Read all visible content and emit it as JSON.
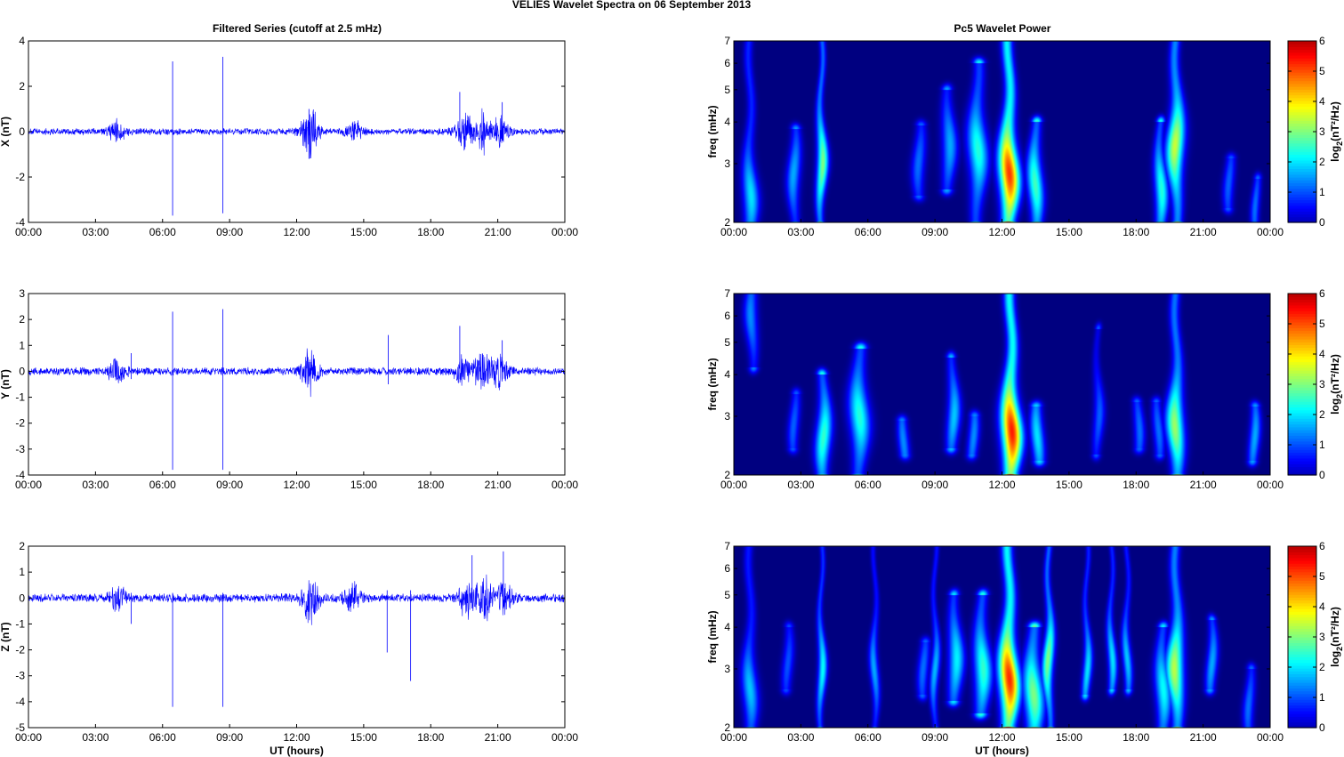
{
  "figure": {
    "title": "VELIES Wavelet Spectra on 06 September 2013",
    "left_title": "Filtered Series (cutoff at 2.5 mHz)",
    "right_title": "Pc5 Wavelet Power"
  },
  "colorbar": {
    "label": "log2(nT²/Hz)",
    "label_main": "log",
    "label_sub": "2",
    "label_rest": "(nT²/Hz)",
    "range": [
      0,
      6
    ],
    "ticks": [
      "0",
      "1",
      "2",
      "3",
      "4",
      "5",
      "6"
    ],
    "colormap": "jet"
  },
  "chart_data": [
    {
      "type": "line",
      "panel": "time-series",
      "component": "X",
      "ylabel": "X (nT)",
      "xlabel": "",
      "x_range": [
        "00:00",
        "24:00"
      ],
      "x_ticks": [
        "00:00",
        "03:00",
        "06:00",
        "09:00",
        "12:00",
        "15:00",
        "18:00",
        "21:00",
        "00:00"
      ],
      "ylim": [
        -4,
        4
      ],
      "y_ticks": [
        "-4",
        "-2",
        "0",
        "2",
        "4"
      ],
      "color": "#0000ff",
      "grid": false,
      "noise_amplitude": 0.12,
      "activity": [
        {
          "t": 3.95,
          "amp": 0.4
        },
        {
          "t": 12.6,
          "amp": 0.9
        },
        {
          "t": 14.6,
          "amp": 0.3
        },
        {
          "t": 19.5,
          "amp": 0.6
        },
        {
          "t": 20.3,
          "amp": 0.7
        },
        {
          "t": 21.1,
          "amp": 0.5
        }
      ],
      "spikes": [
        {
          "t": 6.45,
          "max": 3.1,
          "min": -3.7
        },
        {
          "t": 8.7,
          "max": 3.3,
          "min": -3.6
        },
        {
          "t": 12.55,
          "max": 1.0,
          "min": -1.2
        },
        {
          "t": 19.3,
          "max": 1.75,
          "min": -0.3
        },
        {
          "t": 21.2,
          "max": 1.3,
          "min": -0.4
        }
      ]
    },
    {
      "type": "line",
      "panel": "time-series",
      "component": "Y",
      "ylabel": "Y (nT)",
      "xlabel": "",
      "x_range": [
        "00:00",
        "24:00"
      ],
      "x_ticks": [
        "00:00",
        "03:00",
        "06:00",
        "09:00",
        "12:00",
        "15:00",
        "18:00",
        "21:00",
        "00:00"
      ],
      "ylim": [
        -4,
        3
      ],
      "y_ticks": [
        "-4",
        "-3",
        "-2",
        "-1",
        "0",
        "1",
        "2",
        "3"
      ],
      "color": "#0000ff",
      "grid": false,
      "noise_amplitude": 0.12,
      "activity": [
        {
          "t": 3.95,
          "amp": 0.4
        },
        {
          "t": 12.6,
          "amp": 0.7
        },
        {
          "t": 19.5,
          "amp": 0.5
        },
        {
          "t": 20.3,
          "amp": 0.7
        },
        {
          "t": 21.1,
          "amp": 0.5
        }
      ],
      "spikes": [
        {
          "t": 6.45,
          "max": 2.3,
          "min": -3.8
        },
        {
          "t": 8.7,
          "max": 2.4,
          "min": -3.8
        },
        {
          "t": 16.1,
          "max": 1.4,
          "min": -0.5
        },
        {
          "t": 19.3,
          "max": 1.75,
          "min": -0.3
        },
        {
          "t": 21.2,
          "max": 1.2,
          "min": -0.3
        },
        {
          "t": 4.6,
          "max": 0.7,
          "min": -0.3
        }
      ]
    },
    {
      "type": "line",
      "panel": "time-series",
      "component": "Z",
      "ylabel": "Z (nT)",
      "xlabel": "UT (hours)",
      "x_range": [
        "00:00",
        "24:00"
      ],
      "x_ticks": [
        "00:00",
        "03:00",
        "06:00",
        "09:00",
        "12:00",
        "15:00",
        "18:00",
        "21:00",
        "00:00"
      ],
      "ylim": [
        -5,
        2
      ],
      "y_ticks": [
        "-5",
        "-4",
        "-3",
        "-2",
        "-1",
        "0",
        "1",
        "2"
      ],
      "color": "#0000ff",
      "grid": false,
      "noise_amplitude": 0.13,
      "activity": [
        {
          "t": 4.0,
          "amp": 0.35
        },
        {
          "t": 12.6,
          "amp": 0.8
        },
        {
          "t": 14.5,
          "amp": 0.4
        },
        {
          "t": 19.6,
          "amp": 0.6
        },
        {
          "t": 20.4,
          "amp": 0.7
        },
        {
          "t": 21.3,
          "amp": 0.5
        }
      ],
      "spikes": [
        {
          "t": 6.45,
          "max": 0.2,
          "min": -4.2
        },
        {
          "t": 8.7,
          "max": 0.2,
          "min": -4.2
        },
        {
          "t": 16.05,
          "max": 0.3,
          "min": -2.1
        },
        {
          "t": 17.1,
          "max": 0.3,
          "min": -3.2
        },
        {
          "t": 19.85,
          "max": 1.65,
          "min": -0.4
        },
        {
          "t": 21.25,
          "max": 1.8,
          "min": -0.4
        },
        {
          "t": 4.6,
          "max": 0.2,
          "min": -1.0
        }
      ]
    },
    {
      "type": "heatmap",
      "panel": "wavelet-power",
      "component": "X",
      "ylabel": "freq (mHz)",
      "xlabel": "",
      "x_range": [
        "00:00",
        "24:00"
      ],
      "x_ticks": [
        "00:00",
        "03:00",
        "06:00",
        "09:00",
        "12:00",
        "15:00",
        "18:00",
        "21:00",
        "00:00"
      ],
      "y_scale": "log",
      "ylim": [
        2,
        7
      ],
      "y_ticks": [
        "2",
        "3",
        "4",
        "5",
        "6",
        "7"
      ],
      "value_range": [
        0,
        6
      ],
      "features": [
        {
          "t": 0.7,
          "f_lo": 2.0,
          "f_hi": 7.0,
          "peak": 2.4,
          "value": 2.4,
          "width": 0.35
        },
        {
          "t": 2.7,
          "f_lo": 2.0,
          "f_hi": 3.8,
          "peak": 2.8,
          "value": 2.0,
          "width": 0.3
        },
        {
          "t": 3.9,
          "f_lo": 2.0,
          "f_hi": 7.0,
          "peak": 3.0,
          "value": 3.4,
          "width": 0.25
        },
        {
          "t": 8.3,
          "f_lo": 2.4,
          "f_hi": 3.9,
          "peak": 3.0,
          "value": 1.6,
          "width": 0.3
        },
        {
          "t": 9.6,
          "f_lo": 2.5,
          "f_hi": 5.0,
          "peak": 3.4,
          "value": 2.0,
          "width": 0.35
        },
        {
          "t": 10.9,
          "f_lo": 2.0,
          "f_hi": 6.0,
          "peak": 3.3,
          "value": 2.8,
          "width": 0.45
        },
        {
          "t": 12.3,
          "f_lo": 2.0,
          "f_hi": 7.0,
          "peak": 2.8,
          "value": 5.6,
          "width": 0.45
        },
        {
          "t": 13.5,
          "f_lo": 2.0,
          "f_hi": 4.0,
          "peak": 2.6,
          "value": 3.0,
          "width": 0.35
        },
        {
          "t": 19.1,
          "f_lo": 2.0,
          "f_hi": 4.0,
          "peak": 2.5,
          "value": 2.8,
          "width": 0.3
        },
        {
          "t": 19.8,
          "f_lo": 2.0,
          "f_hi": 7.0,
          "peak": 3.4,
          "value": 3.9,
          "width": 0.4
        },
        {
          "t": 22.2,
          "f_lo": 2.2,
          "f_hi": 3.1,
          "peak": 2.6,
          "value": 1.5,
          "width": 0.25
        },
        {
          "t": 23.4,
          "f_lo": 2.0,
          "f_hi": 2.7,
          "peak": 2.2,
          "value": 1.6,
          "width": 0.2
        }
      ]
    },
    {
      "type": "heatmap",
      "panel": "wavelet-power",
      "component": "Y",
      "ylabel": "freq (mHz)",
      "xlabel": "",
      "x_range": [
        "00:00",
        "24:00"
      ],
      "x_ticks": [
        "00:00",
        "03:00",
        "06:00",
        "09:00",
        "12:00",
        "15:00",
        "18:00",
        "21:00",
        "00:00"
      ],
      "y_scale": "log",
      "ylim": [
        2,
        7
      ],
      "y_ticks": [
        "2",
        "3",
        "4",
        "5",
        "6",
        "7"
      ],
      "value_range": [
        0,
        6
      ],
      "features": [
        {
          "t": 0.8,
          "f_lo": 4.2,
          "f_hi": 7.0,
          "peak": 6.0,
          "value": 1.8,
          "width": 0.3
        },
        {
          "t": 2.7,
          "f_lo": 2.4,
          "f_hi": 3.5,
          "peak": 2.8,
          "value": 1.5,
          "width": 0.25
        },
        {
          "t": 4.0,
          "f_lo": 2.0,
          "f_hi": 4.0,
          "peak": 2.6,
          "value": 2.9,
          "width": 0.35
        },
        {
          "t": 5.6,
          "f_lo": 2.0,
          "f_hi": 4.8,
          "peak": 3.0,
          "value": 2.8,
          "width": 0.45
        },
        {
          "t": 7.6,
          "f_lo": 2.3,
          "f_hi": 2.9,
          "peak": 2.5,
          "value": 1.8,
          "width": 0.25
        },
        {
          "t": 9.8,
          "f_lo": 2.4,
          "f_hi": 4.5,
          "peak": 3.0,
          "value": 2.2,
          "width": 0.3
        },
        {
          "t": 10.7,
          "f_lo": 2.3,
          "f_hi": 3.0,
          "peak": 2.6,
          "value": 1.8,
          "width": 0.25
        },
        {
          "t": 12.4,
          "f_lo": 2.0,
          "f_hi": 7.0,
          "peak": 2.7,
          "value": 5.8,
          "width": 0.45
        },
        {
          "t": 13.6,
          "f_lo": 2.2,
          "f_hi": 3.2,
          "peak": 2.6,
          "value": 2.4,
          "width": 0.3
        },
        {
          "t": 16.3,
          "f_lo": 2.3,
          "f_hi": 5.5,
          "peak": 3.0,
          "value": 1.5,
          "width": 0.25
        },
        {
          "t": 18.1,
          "f_lo": 2.4,
          "f_hi": 3.3,
          "peak": 2.7,
          "value": 1.6,
          "width": 0.25
        },
        {
          "t": 19.0,
          "f_lo": 2.3,
          "f_hi": 3.3,
          "peak": 2.7,
          "value": 1.6,
          "width": 0.25
        },
        {
          "t": 19.8,
          "f_lo": 2.0,
          "f_hi": 7.0,
          "peak": 2.8,
          "value": 3.6,
          "width": 0.4
        },
        {
          "t": 23.3,
          "f_lo": 2.2,
          "f_hi": 3.2,
          "peak": 2.6,
          "value": 2.0,
          "width": 0.25
        }
      ]
    },
    {
      "type": "heatmap",
      "panel": "wavelet-power",
      "component": "Z",
      "ylabel": "freq (mHz)",
      "xlabel": "UT (hours)",
      "x_range": [
        "00:00",
        "24:00"
      ],
      "x_ticks": [
        "00:00",
        "03:00",
        "06:00",
        "09:00",
        "12:00",
        "15:00",
        "18:00",
        "21:00",
        "00:00"
      ],
      "y_scale": "log",
      "ylim": [
        2,
        7
      ],
      "y_ticks": [
        "2",
        "3",
        "4",
        "5",
        "6",
        "7"
      ],
      "value_range": [
        0,
        6
      ],
      "features": [
        {
          "t": 0.7,
          "f_lo": 2.0,
          "f_hi": 7.0,
          "peak": 2.6,
          "value": 2.2,
          "width": 0.35
        },
        {
          "t": 2.4,
          "f_lo": 2.6,
          "f_hi": 4.0,
          "peak": 3.1,
          "value": 1.4,
          "width": 0.25
        },
        {
          "t": 3.9,
          "f_lo": 2.0,
          "f_hi": 7.0,
          "peak": 3.0,
          "value": 2.6,
          "width": 0.2
        },
        {
          "t": 6.3,
          "f_lo": 2.0,
          "f_hi": 7.0,
          "peak": 3.0,
          "value": 2.0,
          "width": 0.2
        },
        {
          "t": 9.0,
          "f_lo": 2.0,
          "f_hi": 7.0,
          "peak": 3.0,
          "value": 2.1,
          "width": 0.2
        },
        {
          "t": 8.5,
          "f_lo": 2.5,
          "f_hi": 3.6,
          "peak": 3.0,
          "value": 1.6,
          "width": 0.25
        },
        {
          "t": 9.9,
          "f_lo": 2.4,
          "f_hi": 5.0,
          "peak": 3.2,
          "value": 2.5,
          "width": 0.35
        },
        {
          "t": 11.1,
          "f_lo": 2.2,
          "f_hi": 5.0,
          "peak": 3.0,
          "value": 2.9,
          "width": 0.4
        },
        {
          "t": 12.3,
          "f_lo": 2.0,
          "f_hi": 7.0,
          "peak": 2.8,
          "value": 5.7,
          "width": 0.45
        },
        {
          "t": 13.4,
          "f_lo": 2.0,
          "f_hi": 4.0,
          "peak": 2.5,
          "value": 3.4,
          "width": 0.45
        },
        {
          "t": 14.1,
          "f_lo": 2.0,
          "f_hi": 7.0,
          "peak": 3.2,
          "value": 3.4,
          "width": 0.25
        },
        {
          "t": 15.8,
          "f_lo": 2.5,
          "f_hi": 7.0,
          "peak": 3.0,
          "value": 2.4,
          "width": 0.2
        },
        {
          "t": 16.9,
          "f_lo": 2.6,
          "f_hi": 7.0,
          "peak": 3.2,
          "value": 2.4,
          "width": 0.2
        },
        {
          "t": 17.6,
          "f_lo": 2.6,
          "f_hi": 7.0,
          "peak": 3.2,
          "value": 2.2,
          "width": 0.2
        },
        {
          "t": 19.2,
          "f_lo": 2.0,
          "f_hi": 4.0,
          "peak": 2.6,
          "value": 2.6,
          "width": 0.35
        },
        {
          "t": 19.8,
          "f_lo": 2.0,
          "f_hi": 7.0,
          "peak": 3.0,
          "value": 3.8,
          "width": 0.4
        },
        {
          "t": 21.4,
          "f_lo": 2.6,
          "f_hi": 4.2,
          "peak": 3.1,
          "value": 2.0,
          "width": 0.25
        },
        {
          "t": 23.1,
          "f_lo": 2.0,
          "f_hi": 3.0,
          "peak": 2.3,
          "value": 1.6,
          "width": 0.25
        }
      ]
    }
  ]
}
